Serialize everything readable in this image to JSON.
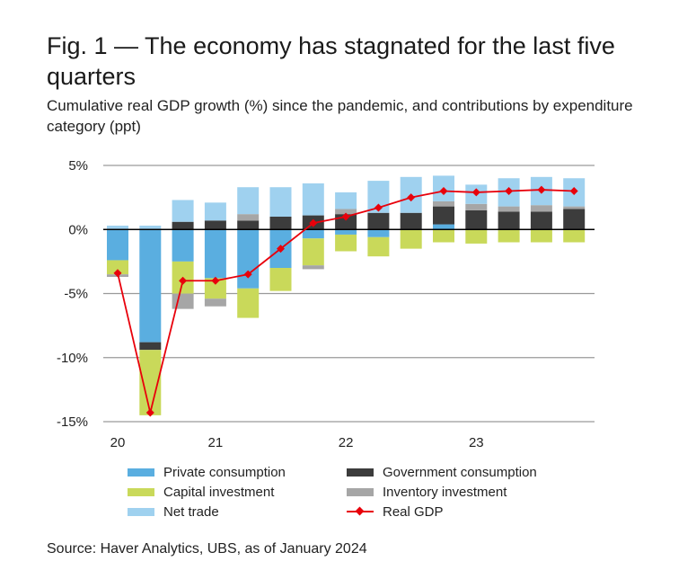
{
  "title": "Fig. 1 — The economy has stagnated for the last five quarters",
  "subtitle": "Cumulative real GDP growth (%) since the pandemic, and contributions by expenditure category (ppt)",
  "source": "Source: Haver Analytics, UBS, as of January 2024",
  "chart_data": {
    "type": "bar",
    "stacked": true,
    "categories": [
      "20Q1",
      "20Q2",
      "20Q3",
      "20Q4",
      "21Q1",
      "21Q2",
      "21Q3",
      "21Q4",
      "22Q1",
      "22Q2",
      "22Q3",
      "22Q4",
      "23Q1",
      "23Q2",
      "23Q3"
    ],
    "x_tick_labels": [
      "20",
      "21",
      "22",
      "23"
    ],
    "y_tick_labels": [
      "5%",
      "0%",
      "-5%",
      "-10%",
      "-15%"
    ],
    "y_ticks": [
      5,
      0,
      -5,
      -10,
      -15
    ],
    "ylim": [
      -15,
      5
    ],
    "grid": true,
    "legend_position": "bottom",
    "series": [
      {
        "name": "Private consumption",
        "type": "bar",
        "color": "#5aaee0",
        "values": [
          -2.4,
          -8.8,
          -2.5,
          -3.8,
          -4.6,
          -3.0,
          -0.7,
          -0.4,
          -0.6,
          0.0,
          0.4,
          0.0,
          0.0,
          0.0,
          0.0
        ]
      },
      {
        "name": "Government consumption",
        "type": "bar",
        "color": "#3c3c3c",
        "values": [
          0.0,
          -0.6,
          0.6,
          0.7,
          0.7,
          1.0,
          1.1,
          1.2,
          1.3,
          1.3,
          1.4,
          1.5,
          1.4,
          1.4,
          1.6
        ]
      },
      {
        "name": "Capital investment",
        "type": "bar",
        "color": "#c9d95a",
        "values": [
          -1.1,
          -5.1,
          -2.5,
          -1.6,
          -2.3,
          -1.8,
          -2.1,
          -1.3,
          -1.5,
          -1.5,
          -1.0,
          -1.1,
          -1.0,
          -1.0,
          -1.0
        ]
      },
      {
        "name": "Inventory investment",
        "type": "bar",
        "color": "#a6a6a6",
        "values": [
          -0.2,
          0.0,
          -1.2,
          -0.6,
          0.5,
          0.0,
          -0.3,
          0.4,
          0.0,
          0.0,
          0.4,
          0.5,
          0.4,
          0.5,
          0.2
        ]
      },
      {
        "name": "Net trade",
        "type": "bar",
        "color": "#9fd1ef",
        "values": [
          0.3,
          0.3,
          1.7,
          1.4,
          2.1,
          2.3,
          2.5,
          1.3,
          2.5,
          2.8,
          2.0,
          1.5,
          2.2,
          2.2,
          2.2
        ]
      },
      {
        "name": "Real GDP",
        "type": "line",
        "color": "#e8000b",
        "values": [
          -3.4,
          -14.3,
          -4.0,
          -4.0,
          -3.5,
          -1.5,
          0.5,
          1.0,
          1.7,
          2.5,
          3.0,
          2.9,
          3.0,
          3.1,
          3.0
        ]
      }
    ]
  }
}
